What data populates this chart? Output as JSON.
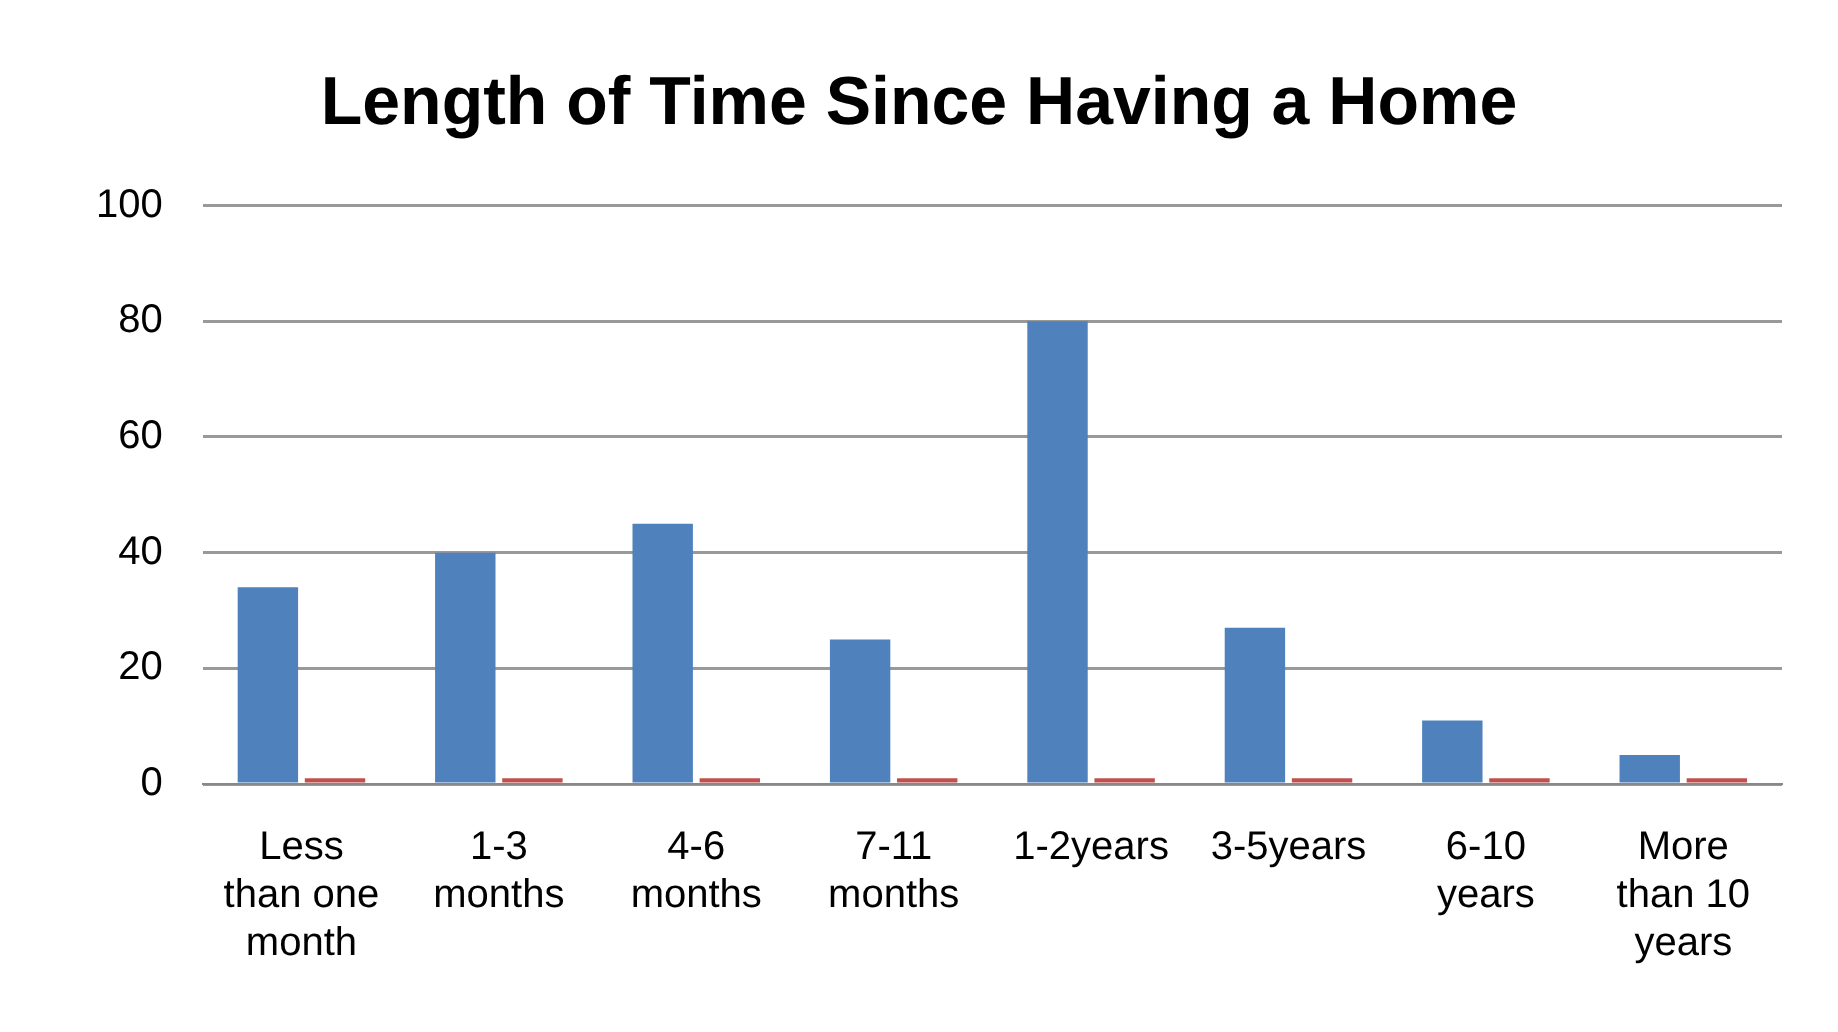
{
  "chart_data": {
    "type": "bar",
    "title": "Length of Time Since Having a Home",
    "categories": [
      "Less than one month",
      "1-3 months",
      "4-6 months",
      "7-11 months",
      "1-2years",
      "3-5years",
      "6-10 years",
      "More than 10 years"
    ],
    "series": [
      {
        "color": "#4f81bd",
        "values": [
          34,
          40,
          45,
          25,
          80,
          27,
          11,
          5
        ]
      },
      {
        "color": "#c0504d",
        "values": [
          1,
          1,
          1,
          1,
          1,
          1,
          1,
          1
        ]
      }
    ],
    "ylim": [
      0,
      100
    ],
    "yticks": [
      0,
      20,
      40,
      60,
      80,
      100
    ],
    "grid": "y",
    "legend": false
  }
}
